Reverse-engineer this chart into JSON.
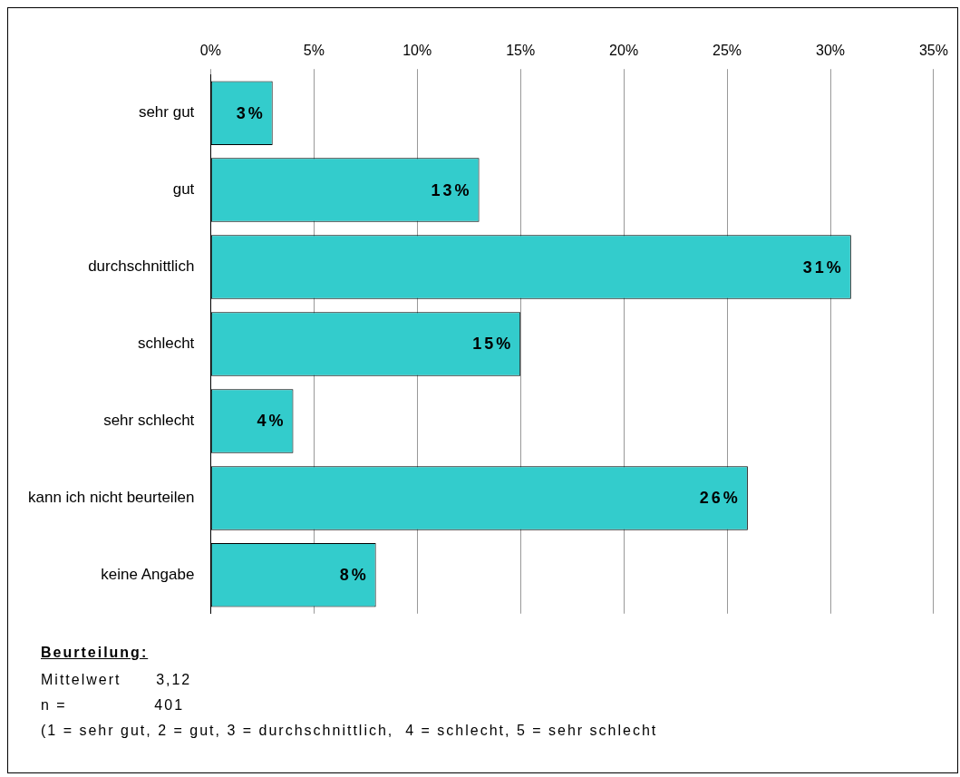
{
  "chart_data": {
    "type": "bar",
    "orientation": "horizontal",
    "categories": [
      "sehr gut",
      "gut",
      "durchschnittlich",
      "schlecht",
      "sehr schlecht",
      "kann ich nicht beurteilen",
      "keine Angabe"
    ],
    "values": [
      3,
      13,
      31,
      15,
      4,
      26,
      8
    ],
    "value_labels": [
      "3%",
      "13%",
      "31%",
      "15%",
      "4%",
      "26%",
      "8%"
    ],
    "color": "#33cccc",
    "xlim": [
      0,
      35
    ],
    "xticks": [
      {
        "value": 0,
        "label": "0%"
      },
      {
        "value": 5,
        "label": "5%"
      },
      {
        "value": 10,
        "label": "10%"
      },
      {
        "value": 15,
        "label": "15%"
      },
      {
        "value": 20,
        "label": "20%"
      },
      {
        "value": 25,
        "label": "25%"
      },
      {
        "value": 30,
        "label": "30%"
      },
      {
        "value": 35,
        "label": "35%"
      }
    ],
    "grid": "x",
    "legend": false,
    "annotations": [
      "Beurteilung:",
      "Mittelwert      3,12",
      "n =               401",
      "(1 = sehr gut, 2 = gut, 3 = durchschnittlich,  4 = schlecht, 5 = sehr schlecht"
    ]
  }
}
